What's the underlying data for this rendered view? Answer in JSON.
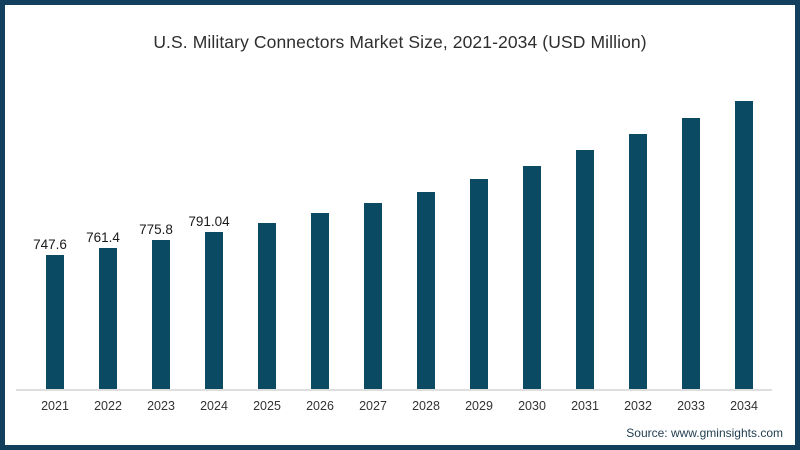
{
  "title_bar": {
    "title": "U.S. Military Connectors Market Size, 2021-2034 (USD Million)"
  },
  "source": "Source: www.gminsights.com",
  "colors": {
    "bar": "#0b4a63",
    "frame": "#113f5c",
    "axis": "#dedede",
    "title_text": "#2e2e2e",
    "value_label_text": "#1a1a1a",
    "tick_text": "#333333",
    "source_text": "#1f3d4f"
  },
  "chart_data": {
    "type": "bar",
    "title": "U.S. Military Connectors Market Size, 2021-2034 (USD Million)",
    "xlabel": "",
    "ylabel": "USD Million",
    "categories": [
      "2021",
      "2022",
      "2023",
      "2024",
      "2025",
      "2026",
      "2027",
      "2028",
      "2029",
      "2030",
      "2031",
      "2032",
      "2033",
      "2034"
    ],
    "values": [
      747.6,
      761.4,
      775.8,
      791.04,
      807.6,
      825.2,
      844.6,
      864.9,
      888.1,
      912.1,
      941.7,
      972.2,
      1000.8,
      1033.2
    ],
    "data_labels": [
      "747.6",
      "761.4",
      "775.8",
      "791.04",
      null,
      null,
      null,
      null,
      null,
      null,
      null,
      null,
      null,
      null
    ],
    "ylim": [
      500,
      1100
    ],
    "grid": false,
    "legend": false,
    "y_axis_visible": false,
    "note": "values for 2025-2034 estimated from bar heights; only 2021-2024 carry printed data labels"
  }
}
